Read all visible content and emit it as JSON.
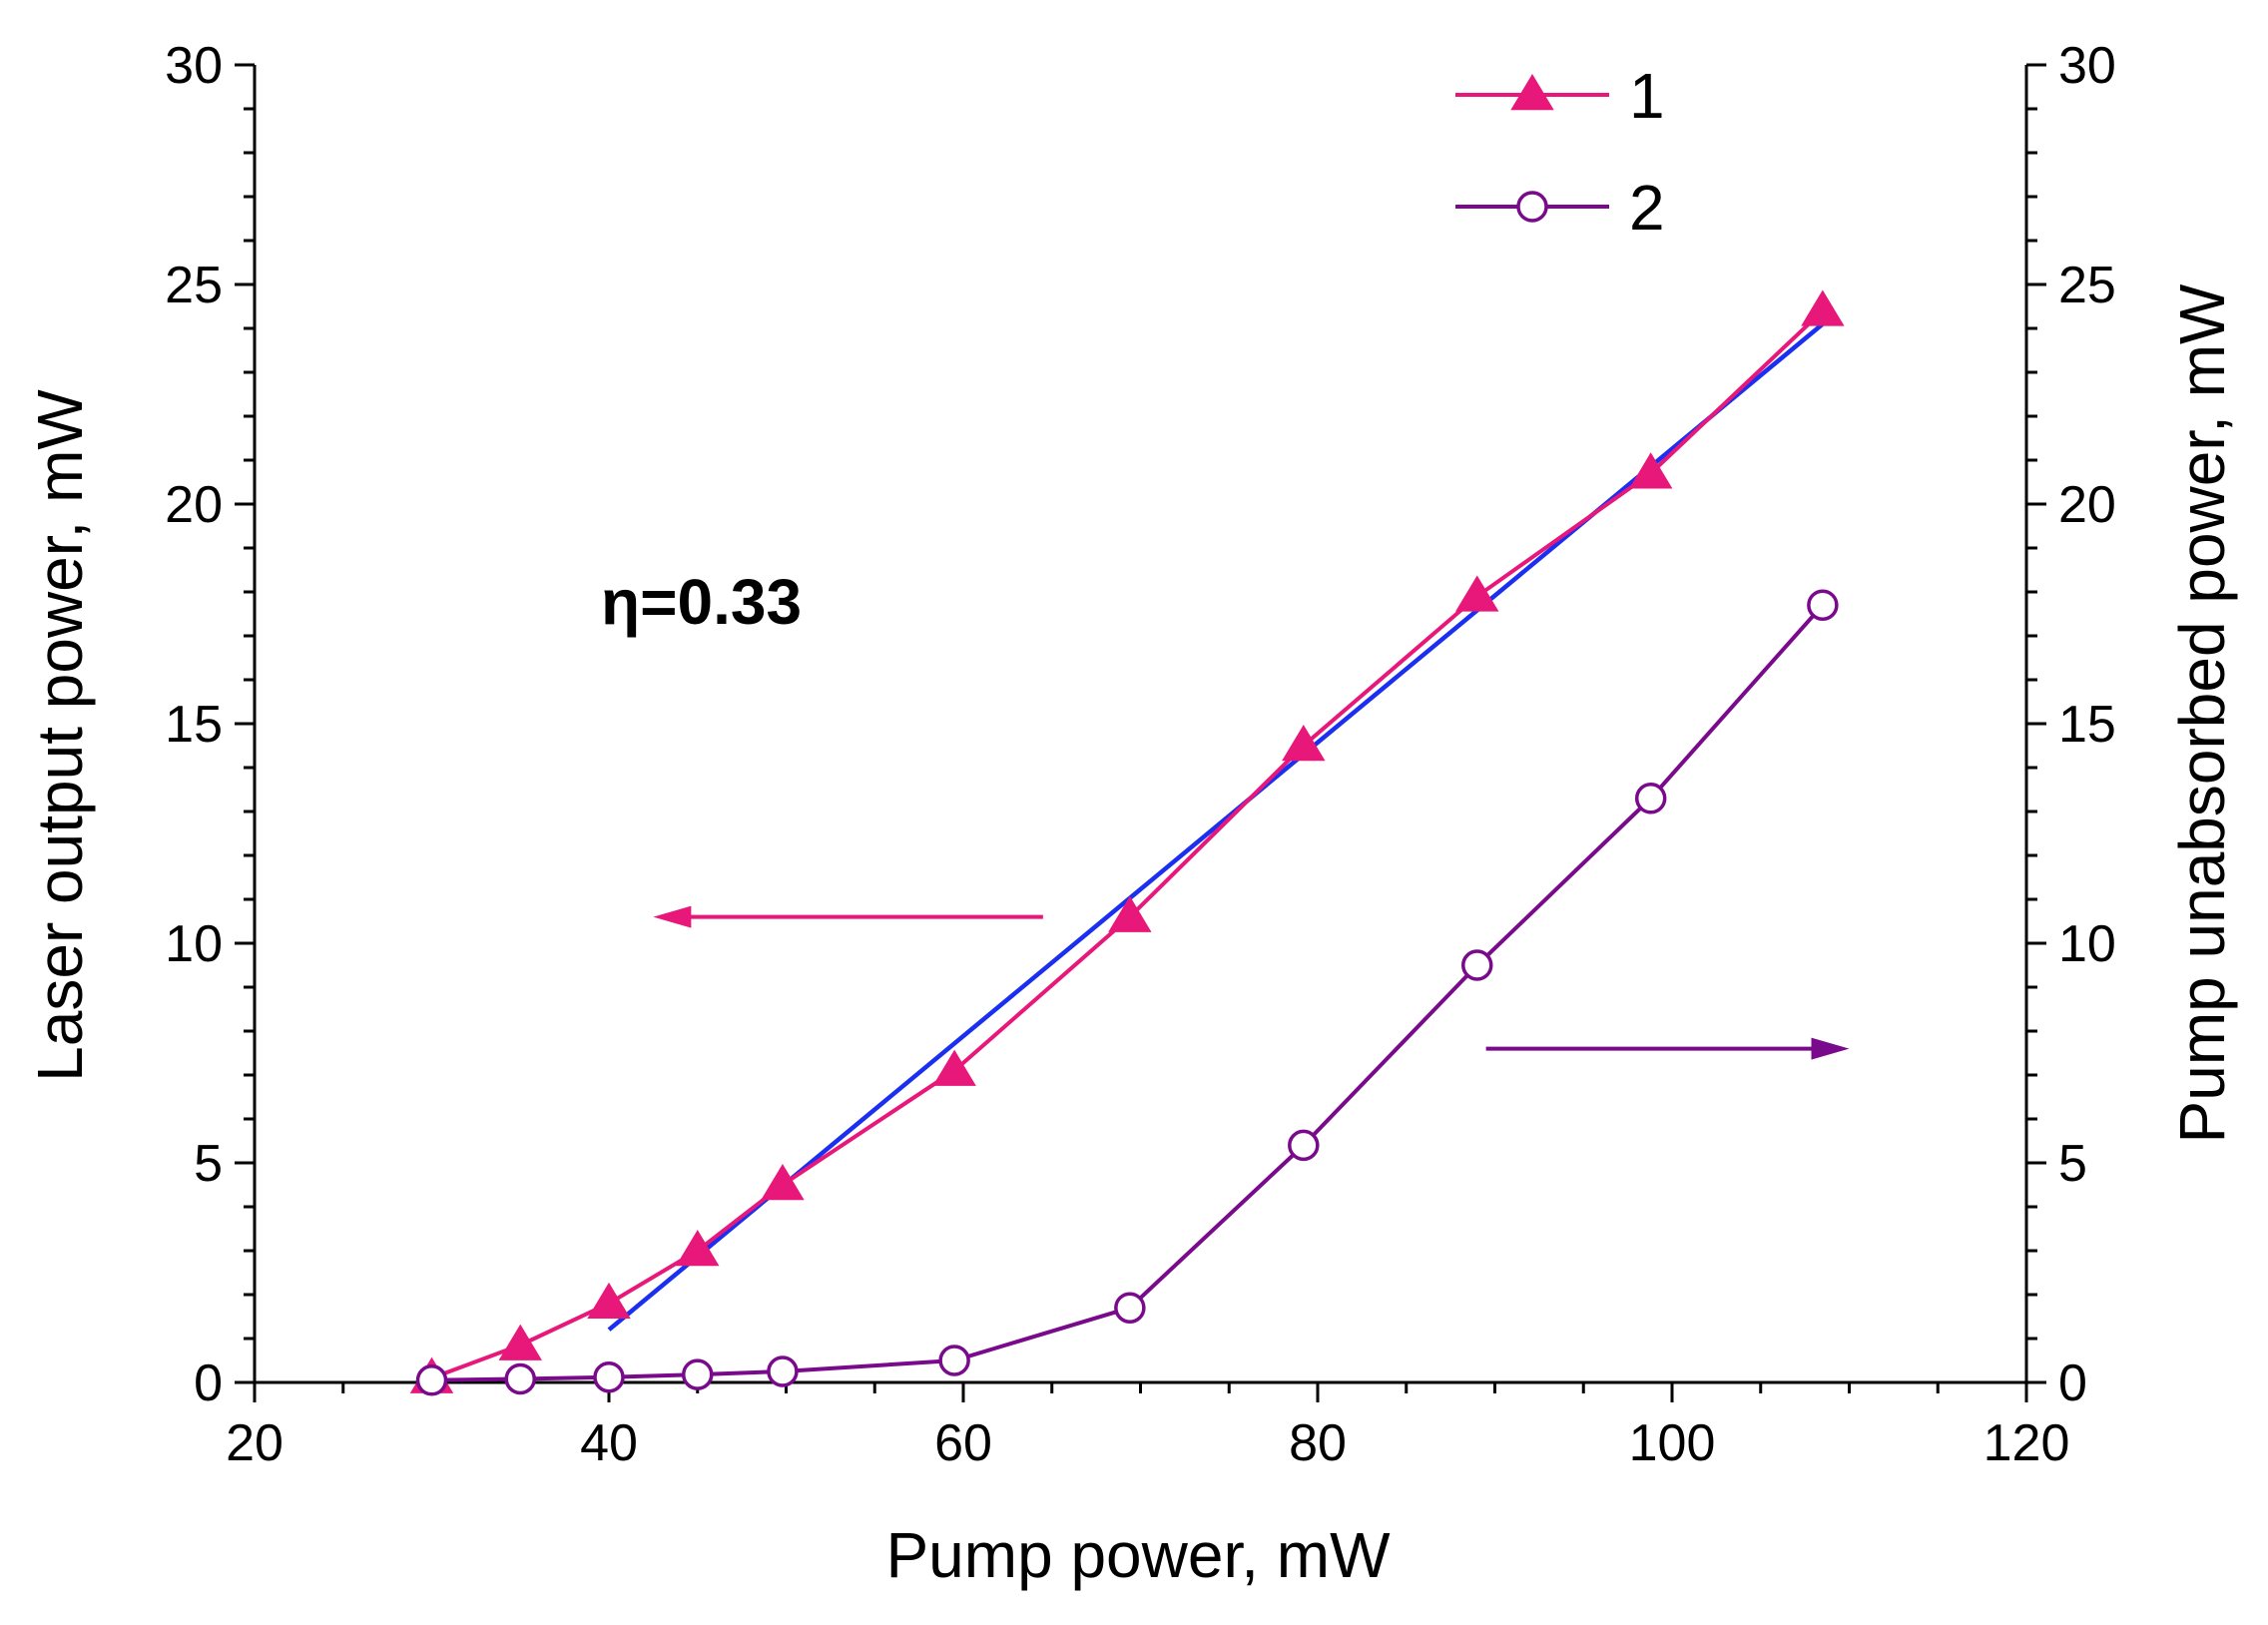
{
  "chart_data": {
    "type": "line",
    "xlabel": "Pump power, mW",
    "ylabel_left": "Laser output power, mW",
    "ylabel_right": "Pump unabsorbed power, mW",
    "xlim": [
      20,
      120
    ],
    "ylim": [
      0,
      30
    ],
    "xticks": [
      "20",
      "40",
      "60",
      "80",
      "100",
      "120"
    ],
    "yticks": [
      "0",
      "5",
      "10",
      "15",
      "20",
      "25",
      "30"
    ],
    "x_tick_values": [
      20,
      40,
      60,
      80,
      100,
      120
    ],
    "y_tick_values": [
      0,
      5,
      10,
      15,
      20,
      25,
      30
    ],
    "grid": false,
    "legend_position": "top-right",
    "series": [
      {
        "name": "1",
        "axis": "left",
        "marker": "filled-triangle",
        "color": "#e8177a",
        "x": [
          30,
          35,
          40,
          45,
          49.8,
          59.5,
          69.4,
          79.2,
          89,
          98.8,
          108.5
        ],
        "y": [
          0.1,
          0.85,
          1.8,
          3.0,
          4.5,
          7.1,
          10.6,
          14.5,
          17.9,
          20.7,
          24.4
        ]
      },
      {
        "name": "2",
        "axis": "right",
        "marker": "open-circle",
        "color": "#7a0a8c",
        "x": [
          30,
          35,
          40,
          45,
          49.8,
          59.5,
          69.4,
          79.2,
          89,
          98.8,
          108.5
        ],
        "y": [
          0.05,
          0.08,
          0.12,
          0.18,
          0.25,
          0.5,
          1.7,
          5.4,
          9.5,
          13.3,
          17.7
        ]
      }
    ],
    "fit_line": {
      "color": "#1a2ff0",
      "x": [
        40,
        108.5
      ],
      "y": [
        1.2,
        24.1
      ]
    },
    "arrows": [
      {
        "direction": "left",
        "color": "#e8177a",
        "x_from": 64.5,
        "x_to": 42.5,
        "y": 10.6
      },
      {
        "direction": "right",
        "color": "#7a0a8c",
        "x_from": 89.5,
        "x_to": 110,
        "y": 7.6
      }
    ],
    "annotations": [
      {
        "text": "η=0.33"
      }
    ]
  }
}
